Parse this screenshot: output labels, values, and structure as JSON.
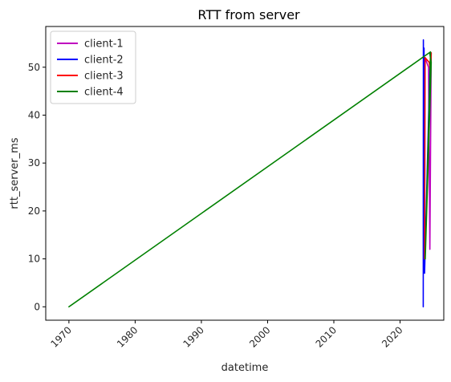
{
  "chart_data": {
    "type": "line",
    "title": "RTT from server",
    "xlabel": "datetime",
    "ylabel": "rtt_server_ms",
    "xlim": [
      1966.5,
      2026.6
    ],
    "ylim": [
      -2.8,
      58.5
    ],
    "x_ticks": [
      1970,
      1980,
      1990,
      2000,
      2010,
      2020
    ],
    "y_ticks": [
      0,
      10,
      20,
      30,
      40,
      50
    ],
    "grid": false,
    "legend_position": "top-left",
    "series": [
      {
        "name": "client-1",
        "color": "#bf00bf",
        "points": [
          [
            2023.6,
            48
          ],
          [
            2023.7,
            8
          ],
          [
            2023.75,
            52
          ],
          [
            2024.3,
            50
          ],
          [
            2024.5,
            12
          ],
          [
            2024.7,
            53
          ]
        ]
      },
      {
        "name": "client-2",
        "color": "#0000ff",
        "points": [
          [
            2023.5,
            0
          ],
          [
            2023.52,
            55.7
          ],
          [
            2023.55,
            40
          ],
          [
            2023.62,
            54
          ],
          [
            2023.7,
            7
          ],
          [
            2024.5,
            50
          ],
          [
            2024.65,
            53
          ]
        ]
      },
      {
        "name": "client-3",
        "color": "#ff0000",
        "points": [
          [
            2023.7,
            10
          ],
          [
            2023.78,
            52
          ],
          [
            2024.4,
            51
          ],
          [
            2024.6,
            49
          ],
          [
            2024.7,
            53
          ]
        ]
      },
      {
        "name": "client-4",
        "color": "#008000",
        "points": [
          [
            1970,
            0
          ],
          [
            2024.6,
            53.2
          ],
          [
            2023.8,
            10
          ],
          [
            2024.7,
            51
          ],
          [
            2024.5,
            52.8
          ]
        ]
      }
    ]
  }
}
